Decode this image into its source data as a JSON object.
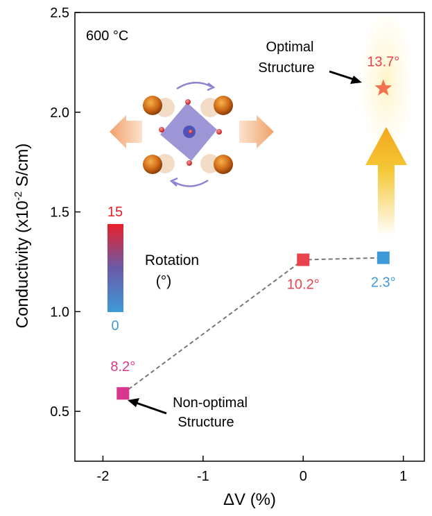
{
  "chart_data": {
    "type": "scatter",
    "xlabel": "ΔV (%)",
    "ylabel": {
      "main": "Conductivity (x10",
      "sup": "-2",
      "end": " S/cm)"
    },
    "xlim": [
      -2.28,
      1.21
    ],
    "ylim": [
      0.25,
      2.5
    ],
    "xticks": [
      -2,
      -1,
      0,
      1
    ],
    "yticks": [
      0.5,
      {
        "value": 1,
        "label": "1.0"
      },
      1.5,
      {
        "value": 2,
        "label": "2.0"
      },
      2.5
    ],
    "series": [
      {
        "x": [
          -1.8,
          0,
          0.8
        ],
        "y": [
          0.59,
          1.26,
          1.27
        ],
        "colors": [
          "#d8378e",
          "#e8424c",
          "#3d9ad8"
        ],
        "labels": [
          "8.2°",
          "10.2°",
          "2.3°"
        ],
        "line_color": "#777777"
      }
    ],
    "highlight": {
      "x": 0.8,
      "y": 2.12,
      "color": "#f2714f",
      "label": "13.7°",
      "label_color": "#e8424c"
    },
    "annotations": [
      {
        "lines": [
          "600 °C"
        ]
      },
      {
        "lines": [
          "Optimal",
          "Structure"
        ]
      },
      {
        "lines": [
          "Non-optimal",
          "Structure"
        ]
      }
    ],
    "colorbar": {
      "label": "Rotation",
      "unit": "(°)",
      "ticks": [
        0,
        15
      ],
      "colors": [
        "#3d9ad8",
        "#e8202a"
      ]
    }
  }
}
